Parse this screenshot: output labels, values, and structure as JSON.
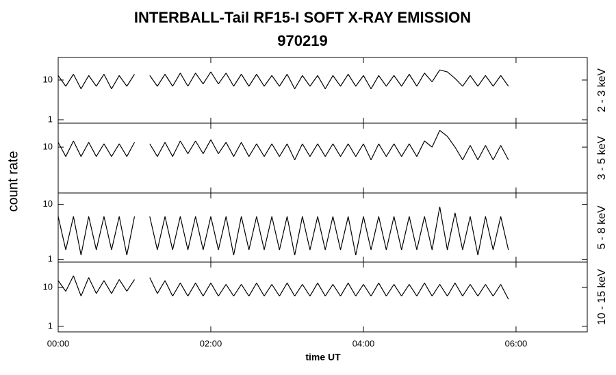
{
  "chart_data": [
    {
      "type": "line",
      "title": "INTERBALL-Tail RF15-I SOFT X-RAY EMISSION",
      "subtitle": "970219",
      "ylabel_shared": "count rate",
      "ylabel": "2 - 3 keV",
      "log_y": true,
      "color": "#000000",
      "ylim": [
        0.82,
        37
      ],
      "yticks": [
        1,
        10
      ],
      "x": [
        0,
        6,
        12,
        18,
        24,
        30,
        36,
        42,
        48,
        54,
        60,
        66,
        72,
        78,
        84,
        90,
        96,
        102,
        108,
        114,
        120,
        126,
        132,
        138,
        144,
        150,
        156,
        162,
        168,
        174,
        180,
        186,
        192,
        198,
        204,
        210,
        216,
        222,
        228,
        234,
        240,
        246,
        252,
        258,
        264,
        270,
        276,
        282,
        288,
        294,
        300,
        306,
        312,
        318,
        324,
        330,
        336,
        342,
        348,
        354
      ],
      "values": [
        13,
        7,
        14,
        6,
        13,
        7,
        14,
        6,
        13,
        7,
        14,
        null,
        13,
        7,
        14,
        7,
        15,
        7,
        15,
        8,
        16,
        8,
        15,
        7,
        14,
        7,
        14,
        7,
        13,
        7,
        14,
        6,
        13,
        7,
        13,
        6,
        13,
        7,
        14,
        7,
        13,
        6,
        13,
        7,
        13,
        7,
        14,
        7,
        15,
        9,
        18,
        16,
        11,
        7,
        13,
        7,
        13,
        7,
        13,
        7
      ]
    },
    {
      "type": "line",
      "ylabel": "3 - 5 keV",
      "log_y": true,
      "color": "#000000",
      "ylim": [
        0.82,
        37
      ],
      "yticks": [
        10
      ],
      "x": [
        0,
        6,
        12,
        18,
        24,
        30,
        36,
        42,
        48,
        54,
        60,
        66,
        72,
        78,
        84,
        90,
        96,
        102,
        108,
        114,
        120,
        126,
        132,
        138,
        144,
        150,
        156,
        162,
        168,
        174,
        180,
        186,
        192,
        198,
        204,
        210,
        216,
        222,
        228,
        234,
        240,
        246,
        252,
        258,
        264,
        270,
        276,
        282,
        288,
        294,
        300,
        306,
        312,
        318,
        324,
        330,
        336,
        342,
        348,
        354
      ],
      "values": [
        13,
        6,
        14,
        6,
        13,
        6,
        12,
        6,
        12,
        6,
        13,
        null,
        12,
        6,
        13,
        6,
        14,
        7,
        14,
        7,
        15,
        7,
        13,
        6,
        13,
        6,
        12,
        6,
        12,
        6,
        12,
        5,
        12,
        6,
        12,
        6,
        12,
        6,
        12,
        6,
        12,
        5,
        12,
        6,
        12,
        6,
        12,
        6,
        14,
        10,
        25,
        18,
        10,
        5,
        11,
        5,
        11,
        5,
        11,
        5
      ]
    },
    {
      "type": "line",
      "ylabel": "5 - 8 keV",
      "log_y": true,
      "color": "#000000",
      "ylim": [
        0.9,
        16
      ],
      "yticks": [
        1,
        10
      ],
      "x": [
        0,
        6,
        12,
        18,
        24,
        30,
        36,
        42,
        48,
        54,
        60,
        66,
        72,
        78,
        84,
        90,
        96,
        102,
        108,
        114,
        120,
        126,
        132,
        138,
        144,
        150,
        156,
        162,
        168,
        174,
        180,
        186,
        192,
        198,
        204,
        210,
        216,
        222,
        228,
        234,
        240,
        246,
        252,
        258,
        264,
        270,
        276,
        282,
        288,
        294,
        300,
        306,
        312,
        318,
        324,
        330,
        336,
        342,
        348,
        354
      ],
      "values": [
        6,
        1.5,
        6,
        1.2,
        6,
        1.5,
        6,
        1.5,
        6,
        1.2,
        6,
        null,
        6,
        1.5,
        6,
        1.5,
        6,
        1.5,
        6,
        1.5,
        6,
        1.5,
        6,
        1.2,
        6,
        1.5,
        6,
        1.5,
        6,
        1.5,
        6,
        1.2,
        6,
        1.5,
        6,
        1.5,
        6,
        1.5,
        6,
        1.2,
        6,
        1.5,
        6,
        1.5,
        6,
        1.5,
        6,
        1.5,
        6,
        1.5,
        9,
        1.5,
        7,
        1.5,
        6,
        1.2,
        6,
        1.5,
        6,
        1.5
      ]
    },
    {
      "type": "line",
      "ylabel": "10 - 15 keV",
      "log_y": true,
      "color": "#000000",
      "xlabel": "time UT",
      "ylim": [
        0.72,
        45
      ],
      "yticks": [
        1,
        10
      ],
      "xlim": [
        0,
        416
      ],
      "xticks": [
        {
          "value": 0,
          "label": "00:00"
        },
        {
          "value": 120,
          "label": "02:00"
        },
        {
          "value": 240,
          "label": "04:00"
        },
        {
          "value": 360,
          "label": "06:00"
        }
      ],
      "x": [
        0,
        6,
        12,
        18,
        24,
        30,
        36,
        42,
        48,
        54,
        60,
        66,
        72,
        78,
        84,
        90,
        96,
        102,
        108,
        114,
        120,
        126,
        132,
        138,
        144,
        150,
        156,
        162,
        168,
        174,
        180,
        186,
        192,
        198,
        204,
        210,
        216,
        222,
        228,
        234,
        240,
        246,
        252,
        258,
        264,
        270,
        276,
        282,
        288,
        294,
        300,
        306,
        312,
        318,
        324,
        330,
        336,
        342,
        348,
        354
      ],
      "values": [
        15,
        8,
        20,
        6,
        18,
        7,
        15,
        7,
        16,
        8,
        16,
        null,
        18,
        7,
        15,
        6,
        13,
        6,
        13,
        6,
        13,
        6,
        12,
        6,
        12,
        6,
        13,
        6,
        12,
        6,
        13,
        6,
        12,
        6,
        13,
        6,
        12,
        6,
        13,
        6,
        12,
        6,
        13,
        6,
        12,
        6,
        12,
        6,
        13,
        6,
        12,
        6,
        13,
        6,
        12,
        6,
        12,
        6,
        12,
        5
      ]
    }
  ]
}
